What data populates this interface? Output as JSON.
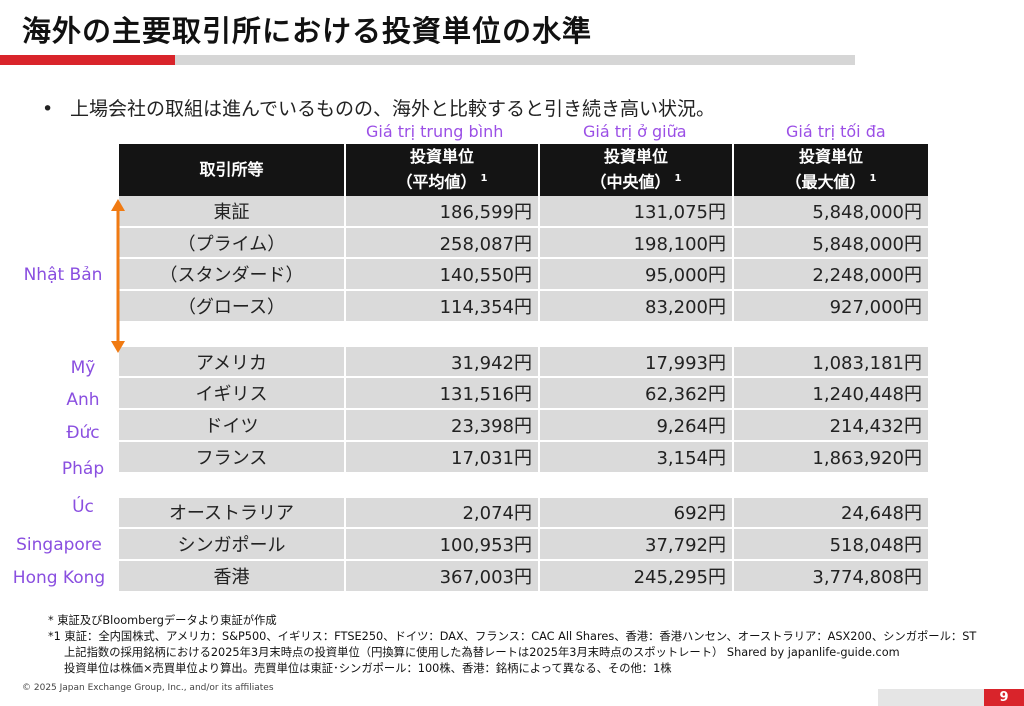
{
  "title": "海外の主要取引所における投資単位の水準",
  "bullet": "上場会社の取組は進んでいるものの、海外と比較すると引き続き高い状況。",
  "bullet_symbol": "•",
  "vn_headers": [
    "Giá trị trung bình",
    "Giá trị ở giữa",
    "Giá trị tối đa"
  ],
  "table": {
    "col_header_name": "取引所等",
    "col_headers": [
      {
        "line1": "投資単位",
        "line2": "（平均値）",
        "sup": "1"
      },
      {
        "line1": "投資単位",
        "line2": "（中央値）",
        "sup": "1"
      },
      {
        "line1": "投資単位",
        "line2": "（最大値）",
        "sup": "1"
      }
    ],
    "group_japan": [
      {
        "name": "東証",
        "avg": "186,599円",
        "median": "131,075円",
        "max": "5,848,000円"
      },
      {
        "name": "（プライム）",
        "avg": "258,087円",
        "median": "198,100円",
        "max": "5,848,000円"
      },
      {
        "name": "（スタンダード）",
        "avg": "140,550円",
        "median": "95,000円",
        "max": "2,248,000円"
      },
      {
        "name": "（グロース）",
        "avg": "114,354円",
        "median": "83,200円",
        "max": "927,000円"
      }
    ],
    "group_west": [
      {
        "name": "アメリカ",
        "avg": "31,942円",
        "median": "17,993円",
        "max": "1,083,181円"
      },
      {
        "name": "イギリス",
        "avg": "131,516円",
        "median": "62,362円",
        "max": "1,240,448円"
      },
      {
        "name": "ドイツ",
        "avg": "23,398円",
        "median": "9,264円",
        "max": "214,432円"
      },
      {
        "name": "フランス",
        "avg": "17,031円",
        "median": "3,154円",
        "max": "1,863,920円"
      }
    ],
    "group_asia": [
      {
        "name": "オーストラリア",
        "avg": "2,074円",
        "median": "692円",
        "max": "24,648円"
      },
      {
        "name": "シンガポール",
        "avg": "100,953円",
        "median": "37,792円",
        "max": "518,048円"
      },
      {
        "name": "香港",
        "avg": "367,003円",
        "median": "245,295円",
        "max": "3,774,808円"
      }
    ]
  },
  "side_labels": {
    "japan": "Nhật Bản",
    "us": "Mỹ",
    "uk": "Anh",
    "de": "Đức",
    "fr": "Pháp",
    "au": "Úc",
    "sg": "Singapore",
    "hk": "Hong Kong"
  },
  "footnotes": [
    "*  東証及びBloombergデータより東証が作成",
    "*1 東証：全内国株式、アメリカ：S&P500、イギリス：FTSE250、ドイツ：DAX、フランス：CAC All Shares、香港：香港ハンセン、オーストラリア：ASX200、シンガポール：ST",
    "上記指数の採用銘柄における2025年3月末時点の投資単位（円換算に使用した為替レートは2025年3月末時点のスポットレート）   Shared by japanlife-guide.com",
    "投資単位は株価×売買単位より算出。売買単位は東証･シンガポール：100株、香港：銘柄によって異なる、その他：1株"
  ],
  "copyright": "© 2025 Japan Exchange Group, Inc., and/or its affiliates",
  "page_number": "9",
  "colors": {
    "accent_red": "#d9242b",
    "header_black": "#141414",
    "cell_grey": "#dadada",
    "label_purple": "#8a4fe0",
    "arrow_orange": "#f07a12"
  }
}
